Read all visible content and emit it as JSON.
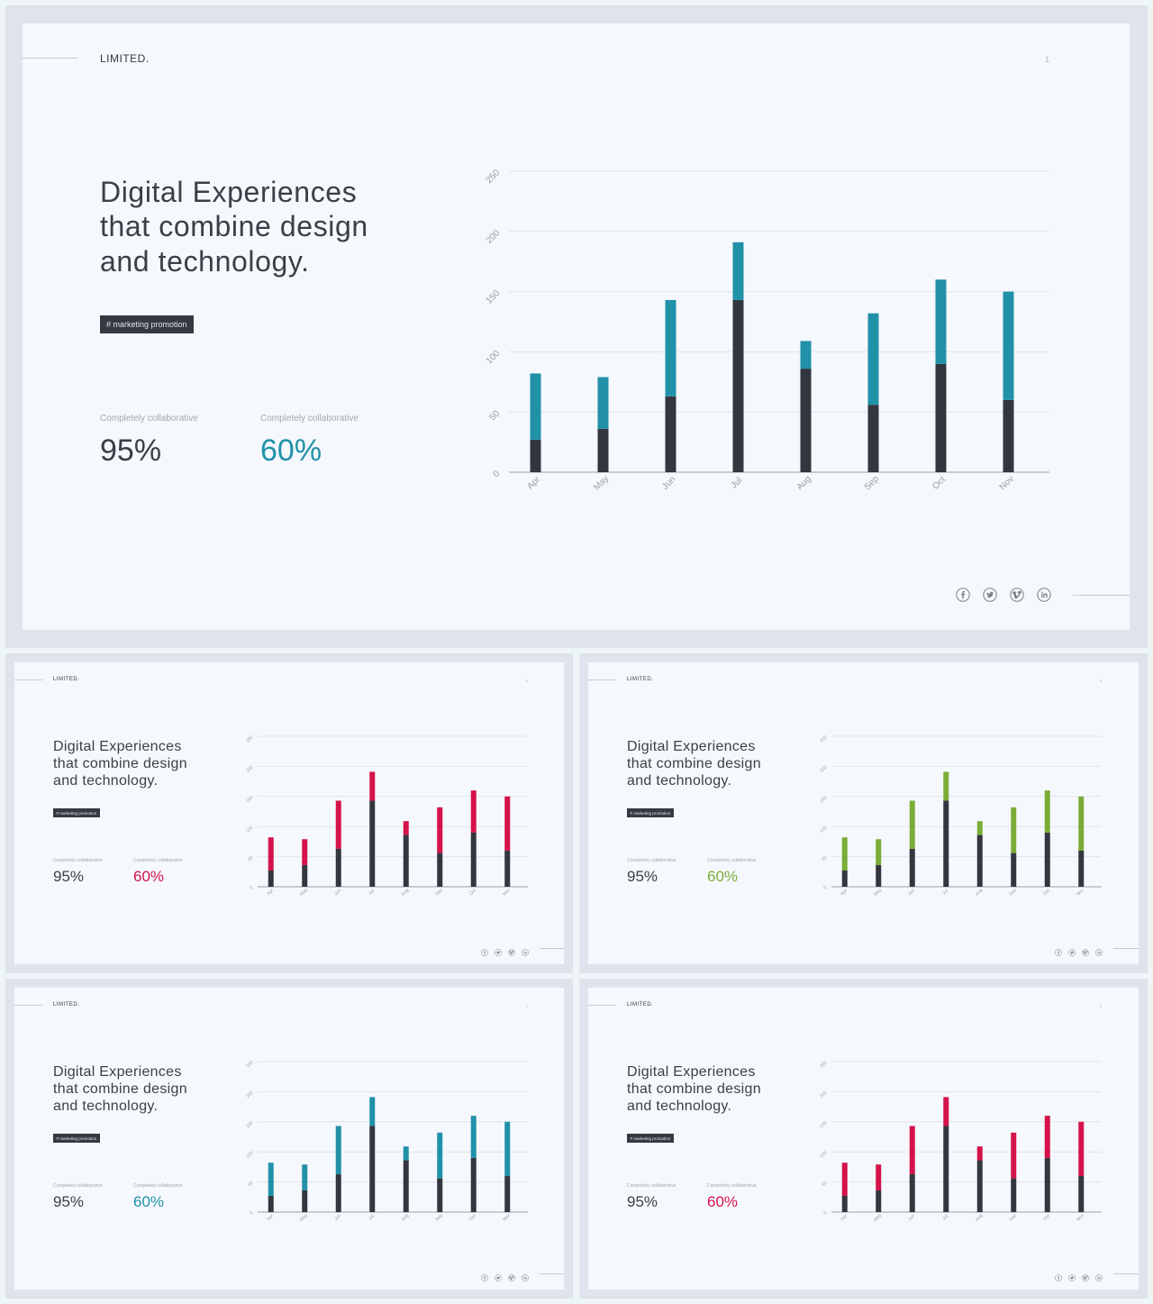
{
  "slides": [
    {
      "brand": "LIMITED.",
      "page_number": "1",
      "headline": "Digital Experiences\nthat combine design\nand technology.",
      "tag": "# marketing  promotion",
      "stats": [
        {
          "label": "Completely  collaborative",
          "value": "95%"
        },
        {
          "label": "Completely  collaborative",
          "value": "60%"
        }
      ],
      "accent_color": "#2191a8"
    },
    {
      "brand": "LIMITED.",
      "page_number": "2",
      "headline": "Digital Experiences\nthat combine design\nand technology.",
      "tag": "# marketing  promotion",
      "stats": [
        {
          "label": "Completely  collaborative",
          "value": "95%"
        },
        {
          "label": "Completely  collaborative",
          "value": "60%"
        }
      ],
      "accent_color": "#d5124a"
    },
    {
      "brand": "LIMITED.",
      "page_number": "3",
      "headline": "Digital Experiences\nthat combine design\nand technology.",
      "tag": "# marketing  promotion",
      "stats": [
        {
          "label": "Completely  collaborative",
          "value": "95%"
        },
        {
          "label": "Completely  collaborative",
          "value": "60%"
        }
      ],
      "accent_color": "#7aad37"
    },
    {
      "brand": "LIMITED.",
      "page_number": "1",
      "headline": "Digital Experiences\nthat combine design\nand technology.",
      "tag": "# marketing  promotion",
      "stats": [
        {
          "label": "Completely  collaborative",
          "value": "95%"
        },
        {
          "label": "Completely  collaborative",
          "value": "60%"
        }
      ],
      "accent_color": "#2191a8"
    },
    {
      "brand": "LIMITED.",
      "page_number": "2",
      "headline": "Digital Experiences\nthat combine design\nand technology.",
      "tag": "# marketing  promotion",
      "stats": [
        {
          "label": "Completely  collaborative",
          "value": "95%"
        },
        {
          "label": "Completely  collaborative",
          "value": "60%"
        }
      ],
      "accent_color": "#d5124a"
    }
  ],
  "social_icons": [
    "facebook-icon",
    "twitter-icon",
    "vimeo-icon",
    "linkedin-icon"
  ],
  "colors": {
    "dark_bar": "#33363f",
    "frame": "#dfe3ec",
    "slide_bg": "#f5f8fd"
  },
  "chart_data": {
    "type": "bar",
    "stacked": true,
    "categories": [
      "Apr",
      "May",
      "Jun",
      "Jul",
      "Aug",
      "Sep",
      "Oct",
      "Nov"
    ],
    "series": [
      {
        "values": [
          27,
          36,
          63,
          143,
          86,
          56,
          90,
          60
        ]
      },
      {
        "values": [
          55,
          43,
          80,
          48,
          23,
          76,
          70,
          90
        ]
      }
    ],
    "yticks": [
      "0",
      "50",
      "100",
      "150",
      "200",
      "250"
    ],
    "ylim": [
      0,
      250
    ],
    "grid": true
  }
}
